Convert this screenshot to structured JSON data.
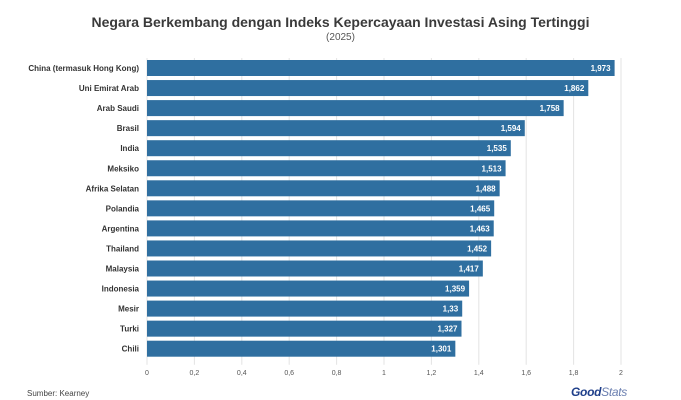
{
  "chart_data": {
    "type": "bar",
    "orientation": "horizontal",
    "title": "Negara Berkembang dengan Indeks Kepercayaan Investasi Asing Tertinggi",
    "subtitle": "(2025)",
    "categories": [
      "China (termasuk Hong Kong)",
      "Uni Emirat Arab",
      "Arab Saudi",
      "Brasil",
      "India",
      "Meksiko",
      "Afrika Selatan",
      "Polandia",
      "Argentina",
      "Thailand",
      "Malaysia",
      "Indonesia",
      "Mesir",
      "Turki",
      "Chili"
    ],
    "values": [
      1.973,
      1.862,
      1.758,
      1.594,
      1.535,
      1.513,
      1.488,
      1.465,
      1.463,
      1.452,
      1.417,
      1.359,
      1.33,
      1.327,
      1.301
    ],
    "value_labels": [
      "1,973",
      "1,862",
      "1,758",
      "1,594",
      "1,535",
      "1,513",
      "1,488",
      "1,465",
      "1,463",
      "1,452",
      "1,417",
      "1,359",
      "1,33",
      "1,327",
      "1,301"
    ],
    "xlim": [
      0,
      2
    ],
    "xticks": [
      "0",
      "0,2",
      "0,4",
      "0,6",
      "0,8",
      "1",
      "1,2",
      "1,4",
      "1,6",
      "1,8",
      "2"
    ],
    "grid": true,
    "bar_color": "#2f6fa0"
  },
  "source": "Sumber: Kearney",
  "logo": {
    "brand": "Good",
    "suffix": "Stats",
    "color": "#1f3f8a"
  }
}
